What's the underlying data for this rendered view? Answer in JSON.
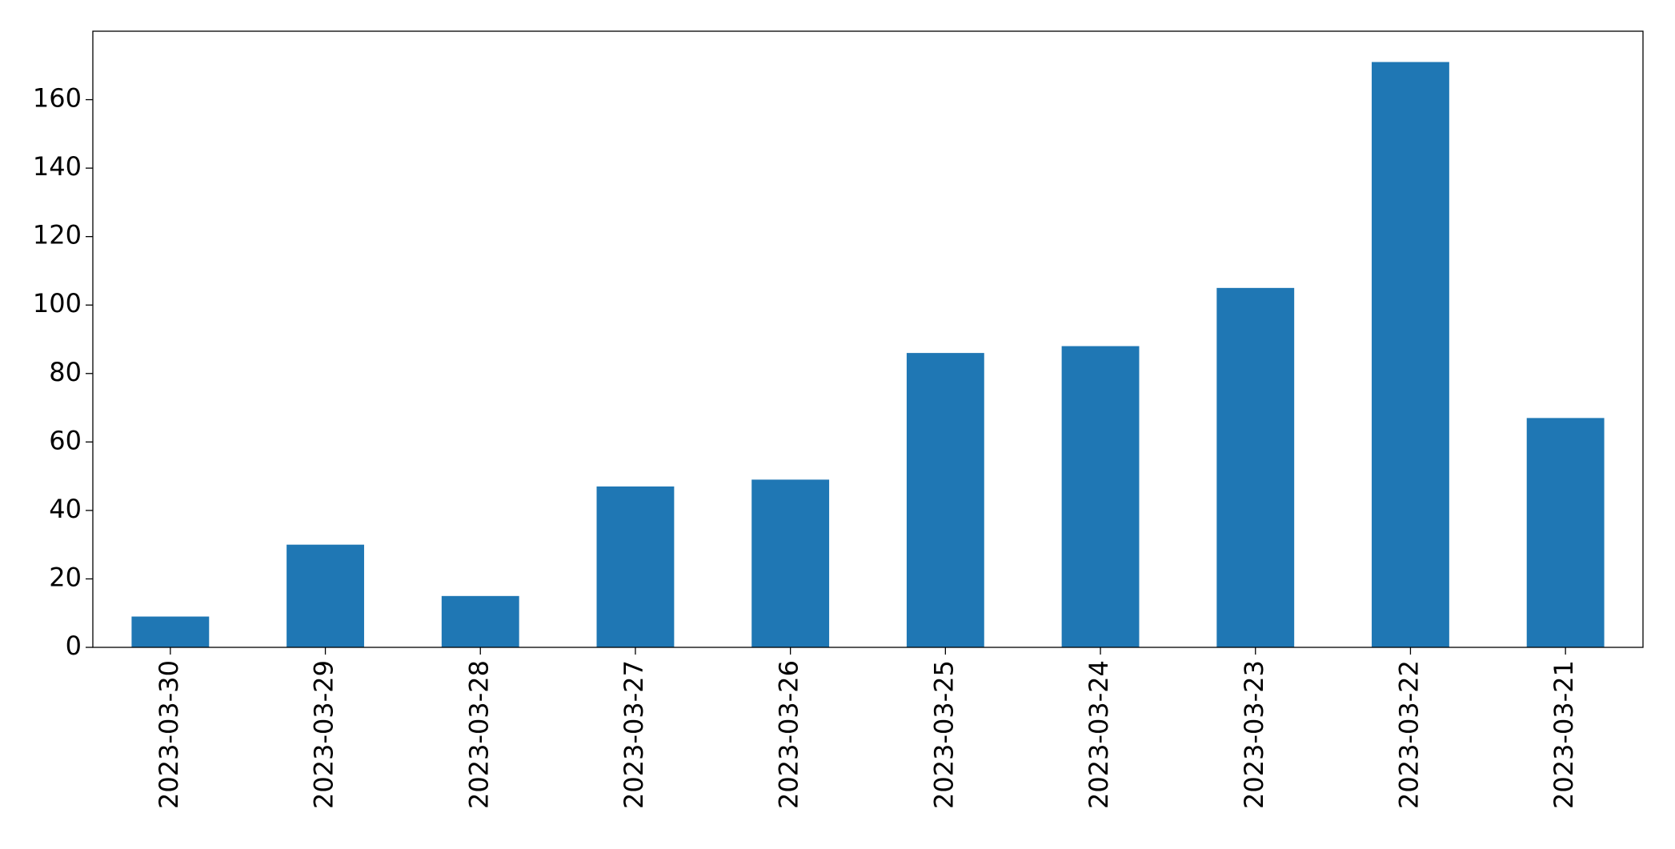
{
  "chart_data": {
    "type": "bar",
    "categories": [
      "2023-03-30",
      "2023-03-29",
      "2023-03-28",
      "2023-03-27",
      "2023-03-26",
      "2023-03-25",
      "2023-03-24",
      "2023-03-23",
      "2023-03-22",
      "2023-03-21"
    ],
    "values": [
      9,
      30,
      15,
      47,
      49,
      86,
      88,
      105,
      171,
      67
    ],
    "color": "#1f77b4",
    "ylim": [
      0,
      180
    ],
    "yticks": [
      0,
      20,
      40,
      60,
      80,
      100,
      120,
      140,
      160
    ],
    "grid": false
  }
}
